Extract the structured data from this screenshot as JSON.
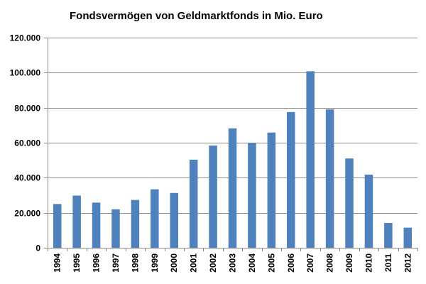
{
  "chart_data": {
    "type": "bar",
    "title": "Fondsvermögen von Geldmarktfonds  in Mio. Euro",
    "xlabel": "",
    "ylabel": "",
    "categories": [
      "1994",
      "1995",
      "1996",
      "1997",
      "1998",
      "1999",
      "2000",
      "2001",
      "2002",
      "2003",
      "2004",
      "2005",
      "2006",
      "2007",
      "2008",
      "2009",
      "2010",
      "2011",
      "2012"
    ],
    "values": [
      25000,
      29800,
      25800,
      22000,
      27300,
      33400,
      31300,
      50300,
      58400,
      68200,
      60000,
      65800,
      77500,
      100800,
      79000,
      51000,
      41800,
      14200,
      11500
    ],
    "ylim": [
      0,
      120000
    ],
    "yticks": [
      0,
      20000,
      40000,
      60000,
      80000,
      100000,
      120000
    ],
    "ytick_labels": [
      "0",
      "20.000",
      "40.000",
      "60.000",
      "80.000",
      "100.000",
      "120.000"
    ],
    "grid": true,
    "legend": "none",
    "bar_color": "#4f81bd"
  }
}
